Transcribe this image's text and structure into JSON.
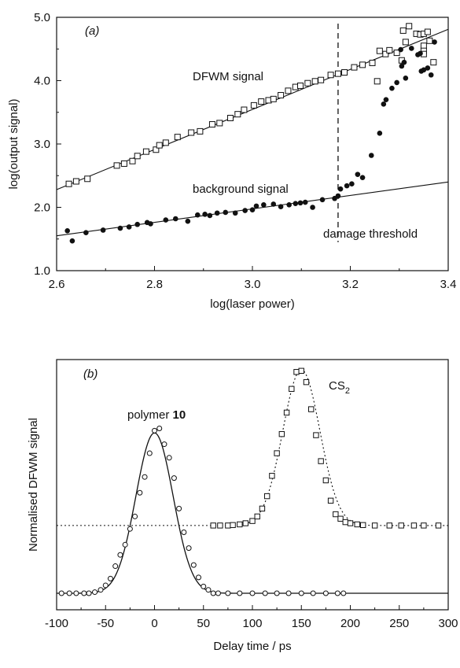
{
  "chart_data": [
    {
      "type": "scatter",
      "panel": "(a)",
      "xlabel": "log(laser power)",
      "ylabel": "log(output signal)",
      "xlim": [
        2.6,
        3.4
      ],
      "ylim": [
        1.0,
        5.0
      ],
      "xticks": [
        "2.6",
        "2.8",
        "3.0",
        "3.2",
        "3.4"
      ],
      "yticks": [
        "1.0",
        "2.0",
        "3.0",
        "4.0",
        "5.0"
      ],
      "annotations": [
        "DFWM signal",
        "background signal",
        "damage threshold"
      ],
      "threshold_x": 3.175,
      "series": [
        {
          "label": "DFWM signal",
          "marker": "open-square",
          "points": [
            [
              2.625,
              2.37
            ],
            [
              2.64,
              2.41
            ],
            [
              2.663,
              2.45
            ],
            [
              2.723,
              2.66
            ],
            [
              2.738,
              2.69
            ],
            [
              2.755,
              2.73
            ],
            [
              2.765,
              2.81
            ],
            [
              2.783,
              2.88
            ],
            [
              2.803,
              2.91
            ],
            [
              2.81,
              2.98
            ],
            [
              2.823,
              3.02
            ],
            [
              2.847,
              3.11
            ],
            [
              2.875,
              3.18
            ],
            [
              2.893,
              3.2
            ],
            [
              2.918,
              3.31
            ],
            [
              2.933,
              3.33
            ],
            [
              2.955,
              3.41
            ],
            [
              2.97,
              3.47
            ],
            [
              2.983,
              3.54
            ],
            [
              3.003,
              3.61
            ],
            [
              3.018,
              3.67
            ],
            [
              3.033,
              3.69
            ],
            [
              3.043,
              3.71
            ],
            [
              3.058,
              3.77
            ],
            [
              3.073,
              3.84
            ],
            [
              3.088,
              3.9
            ],
            [
              3.098,
              3.92
            ],
            [
              3.113,
              3.96
            ],
            [
              3.128,
              3.99
            ],
            [
              3.14,
              4.01
            ],
            [
              3.16,
              4.09
            ],
            [
              3.175,
              4.11
            ],
            [
              3.188,
              4.13
            ],
            [
              3.208,
              4.21
            ],
            [
              3.225,
              4.25
            ],
            [
              3.245,
              4.28
            ],
            [
              3.26,
              4.47
            ],
            [
              3.272,
              4.42
            ],
            [
              3.28,
              4.48
            ],
            [
              3.295,
              4.44
            ],
            [
              3.308,
              4.79
            ],
            [
              3.313,
              4.61
            ],
            [
              3.32,
              4.86
            ],
            [
              3.335,
              4.74
            ],
            [
              3.343,
              4.73
            ],
            [
              3.35,
              4.74
            ],
            [
              3.358,
              4.77
            ],
            [
              3.362,
              4.63
            ],
            [
              3.35,
              4.55
            ],
            [
              3.35,
              4.47
            ],
            [
              3.35,
              4.42
            ],
            [
              3.37,
              4.29
            ],
            [
              3.305,
              4.32
            ],
            [
              3.255,
              3.99
            ]
          ]
        },
        {
          "label": "background signal",
          "marker": "filled-circle",
          "points": [
            [
              2.622,
              1.63
            ],
            [
              2.632,
              1.47
            ],
            [
              2.66,
              1.6
            ],
            [
              2.695,
              1.64
            ],
            [
              2.73,
              1.67
            ],
            [
              2.748,
              1.69
            ],
            [
              2.765,
              1.73
            ],
            [
              2.785,
              1.76
            ],
            [
              2.792,
              1.74
            ],
            [
              2.823,
              1.8
            ],
            [
              2.843,
              1.82
            ],
            [
              2.868,
              1.78
            ],
            [
              2.888,
              1.88
            ],
            [
              2.903,
              1.89
            ],
            [
              2.913,
              1.87
            ],
            [
              2.928,
              1.91
            ],
            [
              2.945,
              1.92
            ],
            [
              2.965,
              1.91
            ],
            [
              2.985,
              1.95
            ],
            [
              3.0,
              1.96
            ],
            [
              3.008,
              2.02
            ],
            [
              3.023,
              2.04
            ],
            [
              3.043,
              2.05
            ],
            [
              3.058,
              2.01
            ],
            [
              3.075,
              2.04
            ],
            [
              3.088,
              2.06
            ],
            [
              3.098,
              2.07
            ],
            [
              3.108,
              2.08
            ],
            [
              3.123,
              2.0
            ],
            [
              3.143,
              2.12
            ],
            [
              3.168,
              2.14
            ],
            [
              3.175,
              2.18
            ],
            [
              3.18,
              2.29
            ],
            [
              3.193,
              2.34
            ],
            [
              3.203,
              2.37
            ],
            [
              3.215,
              2.52
            ],
            [
              3.225,
              2.47
            ],
            [
              3.243,
              2.82
            ],
            [
              3.26,
              3.17
            ],
            [
              3.268,
              3.63
            ],
            [
              3.273,
              3.7
            ],
            [
              3.285,
              3.88
            ],
            [
              3.295,
              3.97
            ],
            [
              3.305,
              4.23
            ],
            [
              3.31,
              4.29
            ],
            [
              3.313,
              4.04
            ],
            [
              3.325,
              4.51
            ],
            [
              3.338,
              4.41
            ],
            [
              3.343,
              4.43
            ],
            [
              3.345,
              4.15
            ],
            [
              3.35,
              4.17
            ],
            [
              3.358,
              4.2
            ],
            [
              3.365,
              4.09
            ],
            [
              3.372,
              4.61
            ],
            [
              3.303,
              4.49
            ]
          ]
        }
      ],
      "fit_lines": [
        {
          "series": "DFWM signal",
          "x": [
            2.6,
            3.4
          ],
          "y": [
            2.28,
            4.81
          ]
        },
        {
          "series": "background signal",
          "x": [
            2.6,
            3.4
          ],
          "y": [
            1.55,
            2.4
          ]
        }
      ]
    },
    {
      "type": "scatter",
      "panel": "(b)",
      "xlabel": "Delay time / ps",
      "ylabel": "Normalised DFWM signal",
      "xlim": [
        -100,
        300
      ],
      "ylim": [
        0,
        1.0
      ],
      "xticks": [
        "-100",
        "-50",
        "0",
        "50",
        "100",
        "150",
        "200",
        "250",
        "300"
      ],
      "annotations": {
        "polymer_prefix": "polymer ",
        "polymer_number": "10",
        "cs2_base": "CS",
        "cs2_subscript": "2"
      },
      "series": [
        {
          "label": "polymer 10",
          "marker": "open-circle",
          "baseline": 0.0,
          "points": [
            [
              -95,
              0.0
            ],
            [
              -87,
              0.0
            ],
            [
              -80,
              0.0
            ],
            [
              -72,
              0.0
            ],
            [
              -67,
              0.0
            ],
            [
              -61,
              0.005
            ],
            [
              -55,
              0.015
            ],
            [
              -50,
              0.035
            ],
            [
              -45,
              0.065
            ],
            [
              -40,
              0.12
            ],
            [
              -35,
              0.17
            ],
            [
              -30,
              0.215
            ],
            [
              -25,
              0.285
            ],
            [
              -20,
              0.34
            ],
            [
              -15,
              0.445
            ],
            [
              -10,
              0.515
            ],
            [
              -5,
              0.62
            ],
            [
              0,
              0.72
            ],
            [
              5,
              0.73
            ],
            [
              10,
              0.66
            ],
            [
              15,
              0.6
            ],
            [
              20,
              0.51
            ],
            [
              25,
              0.375
            ],
            [
              30,
              0.27
            ],
            [
              35,
              0.2
            ],
            [
              40,
              0.125
            ],
            [
              45,
              0.07
            ],
            [
              50,
              0.03
            ],
            [
              55,
              0.015
            ],
            [
              60,
              0.0
            ],
            [
              65,
              0.0
            ],
            [
              75,
              0.0
            ],
            [
              87,
              0.0
            ],
            [
              100,
              0.0
            ],
            [
              113,
              0.0
            ],
            [
              125,
              0.0
            ],
            [
              137,
              0.0
            ],
            [
              150,
              0.0
            ],
            [
              162,
              0.0
            ],
            [
              175,
              0.0
            ],
            [
              187,
              0.0
            ],
            [
              193,
              0.0
            ]
          ]
        },
        {
          "label": "CS2",
          "marker": "open-square",
          "baseline": 0.3,
          "points": [
            [
              60,
              0.3
            ],
            [
              67,
              0.3
            ],
            [
              75,
              0.3
            ],
            [
              80,
              0.302
            ],
            [
              87,
              0.305
            ],
            [
              93,
              0.31
            ],
            [
              100,
              0.32
            ],
            [
              105,
              0.34
            ],
            [
              110,
              0.375
            ],
            [
              115,
              0.43
            ],
            [
              120,
              0.52
            ],
            [
              125,
              0.62
            ],
            [
              130,
              0.705
            ],
            [
              135,
              0.8
            ],
            [
              140,
              0.905
            ],
            [
              145,
              0.98
            ],
            [
              150,
              0.985
            ],
            [
              155,
              0.935
            ],
            [
              160,
              0.815
            ],
            [
              165,
              0.7
            ],
            [
              170,
              0.585
            ],
            [
              175,
              0.5
            ],
            [
              180,
              0.41
            ],
            [
              185,
              0.35
            ],
            [
              190,
              0.33
            ],
            [
              195,
              0.315
            ],
            [
              200,
              0.31
            ],
            [
              207,
              0.305
            ],
            [
              213,
              0.302
            ],
            [
              225,
              0.3
            ],
            [
              240,
              0.3
            ],
            [
              252,
              0.3
            ],
            [
              265,
              0.3
            ],
            [
              275,
              0.3
            ],
            [
              290,
              0.3
            ]
          ]
        }
      ],
      "fits": [
        {
          "series": "polymer 10",
          "line": "solid",
          "center": 0,
          "amplitude": 0.71,
          "sigma": 19
        },
        {
          "series": "CS2",
          "line": "dotted",
          "center": 150,
          "amplitude": 0.69,
          "sigma": 19
        }
      ]
    }
  ]
}
